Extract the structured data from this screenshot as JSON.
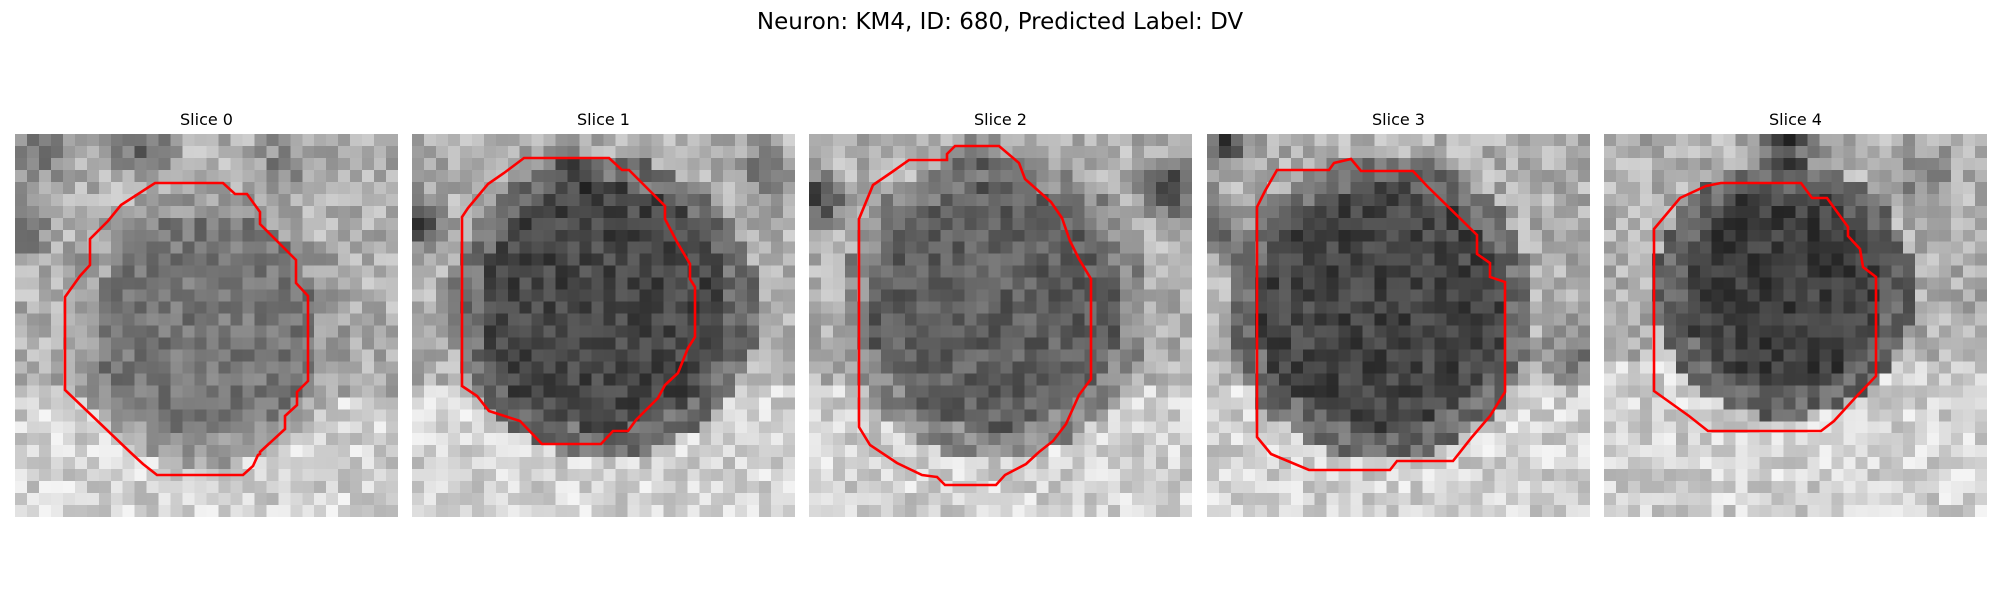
{
  "figure": {
    "title": "Neuron: KM4, ID: 680, Predicted Label: DV"
  },
  "slices": [
    {
      "label": "Slice 0"
    },
    {
      "label": "Slice 1"
    },
    {
      "label": "Slice 2"
    },
    {
      "label": "Slice 3"
    },
    {
      "label": "Slice 4"
    }
  ],
  "colors": {
    "contour": "#ff0000",
    "image_colormap": "grayscale"
  }
}
